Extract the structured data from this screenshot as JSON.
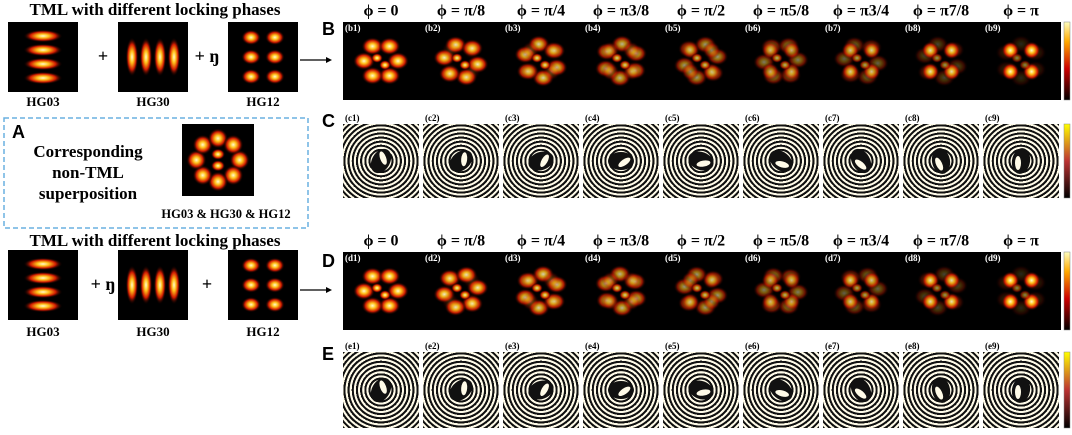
{
  "panel_top": {
    "title": "TML with different locking phases",
    "modes": [
      "HG03",
      "HG30",
      "HG12"
    ],
    "ops": [
      "+",
      "+ ŋ"
    ]
  },
  "panel_A": {
    "letter": "A",
    "lines": [
      "Corresponding",
      "non-TML",
      "superposition"
    ],
    "caption": "HG03 & HG30 & HG12"
  },
  "panel_bottom": {
    "title": "TML with different locking phases",
    "modes": [
      "HG03",
      "HG30",
      "HG12"
    ],
    "ops": [
      "+ ŋ",
      "+"
    ]
  },
  "phases_top": [
    "ϕ = 0",
    "ϕ = π/8",
    "ϕ = π/4",
    "ϕ = π3/8",
    "ϕ = π/2",
    "ϕ = π5/8",
    "ϕ = π3/4",
    "ϕ = π7/8",
    "ϕ = π"
  ],
  "phases_bottom": [
    "ϕ = 0",
    "ϕ = π/8",
    "ϕ = π/4",
    "ϕ = π3/8",
    "ϕ = π/2",
    "ϕ = π5/8",
    "ϕ = π3/4",
    "ϕ = π7/8",
    "ϕ = π"
  ],
  "rows": [
    {
      "letter": "B",
      "kind": "intensity",
      "labels": [
        "(b1)",
        "(b2)",
        "(b3)",
        "(b4)",
        "(b5)",
        "(b6)",
        "(b7)",
        "(b8)",
        "(b9)"
      ]
    },
    {
      "letter": "C",
      "kind": "phase",
      "labels": [
        "(c1)",
        "(c2)",
        "(c3)",
        "(c4)",
        "(c5)",
        "(c6)",
        "(c7)",
        "(c8)",
        "(c9)"
      ]
    },
    {
      "letter": "D",
      "kind": "intensity",
      "labels": [
        "(d1)",
        "(d2)",
        "(d3)",
        "(d4)",
        "(d5)",
        "(d6)",
        "(d7)",
        "(d8)",
        "(d9)"
      ]
    },
    {
      "letter": "E",
      "kind": "phase",
      "labels": [
        "(e1)",
        "(e2)",
        "(e3)",
        "(e4)",
        "(e5)",
        "(e6)",
        "(e7)",
        "(e8)",
        "(e9)"
      ]
    }
  ]
}
